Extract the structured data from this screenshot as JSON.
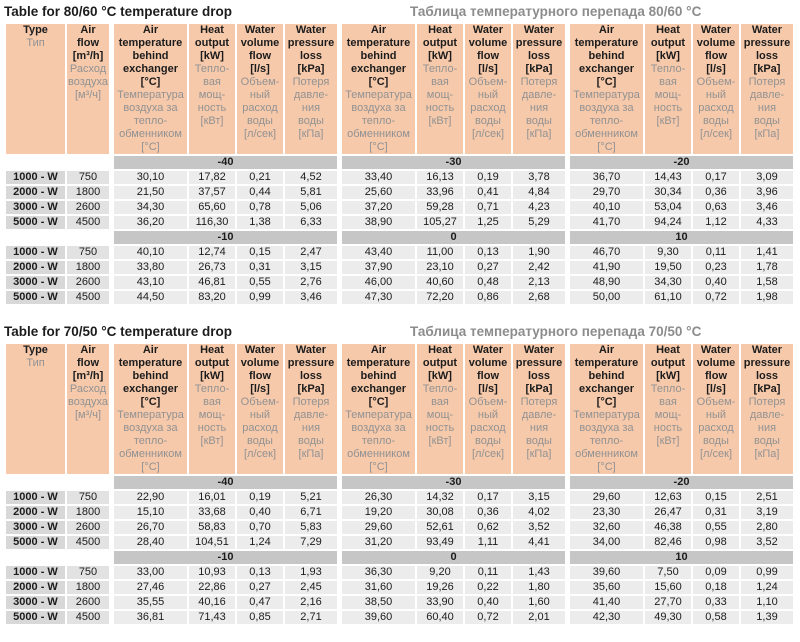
{
  "colors": {
    "header_bg": "#f6c9ab",
    "band_bg": "#c6c6c6",
    "type_cell_bg": "#d8d8d8",
    "airflow_cell_bg": "#e2e2e2",
    "value_cell_bg": "#ececec",
    "english_text": "#1c1c1c",
    "russian_text": "#929292",
    "russian_title_text": "#8c8c8c"
  },
  "header_columns": {
    "type": {
      "en": "Type",
      "ru": "Тип"
    },
    "airflow": {
      "en": "Air\nflow\n[m³/h]",
      "ru": "Расход\nвоздуха\n[м³/ч]"
    },
    "group": [
      {
        "en": "Air\ntemperature\nbehind\nexchanger\n[°C]",
        "ru": "Температура\nвоздуха за\nтепло-\nобменником\n[°C]"
      },
      {
        "en": "Heat\noutput\n[kW]",
        "ru": "Тепло-\nвая\nмощ-\nность\n[кВт]"
      },
      {
        "en": "Water\nvolume\nflow\n[l/s]",
        "ru": "Объем-\nный\nрасход\nводы\n[л/сек]"
      },
      {
        "en": "Water\npressure\nloss\n[kPa]",
        "ru": "Потеря\nдавле-\nния\nводы\n[кПа]"
      }
    ]
  },
  "tables": [
    {
      "title_en": "Table for 80/60 °C temperature drop",
      "title_ru": "Таблица температурного перепада 80/60 °C",
      "blocks": [
        {
          "temps": [
            "-40",
            "-30",
            "-20"
          ],
          "rows": [
            {
              "type": "1000 - W",
              "airflow": "750",
              "values": [
                [
                  "30,10",
                  "17,82",
                  "0,21",
                  "4,52"
                ],
                [
                  "33,40",
                  "16,13",
                  "0,19",
                  "3,78"
                ],
                [
                  "36,70",
                  "14,43",
                  "0,17",
                  "3,09"
                ]
              ]
            },
            {
              "type": "2000 - W",
              "airflow": "1800",
              "values": [
                [
                  "21,50",
                  "37,57",
                  "0,44",
                  "5,81"
                ],
                [
                  "25,60",
                  "33,96",
                  "0,41",
                  "4,84"
                ],
                [
                  "29,70",
                  "30,34",
                  "0,36",
                  "3,96"
                ]
              ]
            },
            {
              "type": "3000 - W",
              "airflow": "2600",
              "values": [
                [
                  "34,30",
                  "65,60",
                  "0,78",
                  "5,06"
                ],
                [
                  "37,20",
                  "59,28",
                  "0,71",
                  "4,23"
                ],
                [
                  "40,10",
                  "53,04",
                  "0,63",
                  "3,46"
                ]
              ]
            },
            {
              "type": "5000 - W",
              "airflow": "4500",
              "values": [
                [
                  "36,20",
                  "116,30",
                  "1,38",
                  "6,33"
                ],
                [
                  "38,90",
                  "105,27",
                  "1,25",
                  "5,29"
                ],
                [
                  "41,70",
                  "94,24",
                  "1,12",
                  "4,33"
                ]
              ]
            }
          ]
        },
        {
          "temps": [
            "-10",
            "0",
            "10"
          ],
          "rows": [
            {
              "type": "1000 - W",
              "airflow": "750",
              "values": [
                [
                  "40,10",
                  "12,74",
                  "0,15",
                  "2,47"
                ],
                [
                  "43,40",
                  "11,00",
                  "0,13",
                  "1,90"
                ],
                [
                  "46,70",
                  "9,30",
                  "0,11",
                  "1,41"
                ]
              ]
            },
            {
              "type": "2000 - W",
              "airflow": "1800",
              "values": [
                [
                  "33,80",
                  "26,73",
                  "0,31",
                  "3,15"
                ],
                [
                  "37,90",
                  "23,10",
                  "0,27",
                  "2,42"
                ],
                [
                  "41,90",
                  "19,50",
                  "0,23",
                  "1,78"
                ]
              ]
            },
            {
              "type": "3000 - W",
              "airflow": "2600",
              "values": [
                [
                  "43,10",
                  "46,81",
                  "0,55",
                  "2,76"
                ],
                [
                  "46,00",
                  "40,60",
                  "0,48",
                  "2,13"
                ],
                [
                  "48,90",
                  "34,30",
                  "0,40",
                  "1,58"
                ]
              ]
            },
            {
              "type": "5000 - W",
              "airflow": "4500",
              "values": [
                [
                  "44,50",
                  "83,20",
                  "0,99",
                  "3,46"
                ],
                [
                  "47,30",
                  "72,20",
                  "0,86",
                  "2,68"
                ],
                [
                  "50,00",
                  "61,10",
                  "0,72",
                  "1,98"
                ]
              ]
            }
          ]
        }
      ]
    },
    {
      "title_en": "Table for 70/50 °C temperature drop",
      "title_ru": "Таблица температурного перепада 70/50 °C",
      "blocks": [
        {
          "temps": [
            "-40",
            "-30",
            "-20"
          ],
          "rows": [
            {
              "type": "1000 - W",
              "airflow": "750",
              "values": [
                [
                  "22,90",
                  "16,01",
                  "0,19",
                  "5,21"
                ],
                [
                  "26,30",
                  "14,32",
                  "0,17",
                  "3,15"
                ],
                [
                  "29,60",
                  "12,63",
                  "0,15",
                  "2,51"
                ]
              ]
            },
            {
              "type": "2000 - W",
              "airflow": "1800",
              "values": [
                [
                  "15,10",
                  "33,68",
                  "0,40",
                  "6,71"
                ],
                [
                  "19,20",
                  "30,08",
                  "0,36",
                  "4,02"
                ],
                [
                  "23,30",
                  "26,47",
                  "0,31",
                  "3,19"
                ]
              ]
            },
            {
              "type": "3000 - W",
              "airflow": "2600",
              "values": [
                [
                  "26,70",
                  "58,83",
                  "0,70",
                  "5,83"
                ],
                [
                  "29,60",
                  "52,61",
                  "0,62",
                  "3,52"
                ],
                [
                  "32,60",
                  "46,38",
                  "0,55",
                  "2,80"
                ]
              ]
            },
            {
              "type": "5000 - W",
              "airflow": "4500",
              "values": [
                [
                  "28,40",
                  "104,51",
                  "1,24",
                  "7,29"
                ],
                [
                  "31,20",
                  "93,49",
                  "1,11",
                  "4,41"
                ],
                [
                  "34,00",
                  "82,46",
                  "0,98",
                  "3,52"
                ]
              ]
            }
          ]
        },
        {
          "temps": [
            "-10",
            "0",
            "10"
          ],
          "rows": [
            {
              "type": "1000 - W",
              "airflow": "750",
              "values": [
                [
                  "33,00",
                  "10,93",
                  "0,13",
                  "1,93"
                ],
                [
                  "36,30",
                  "9,20",
                  "0,11",
                  "1,43"
                ],
                [
                  "39,60",
                  "7,50",
                  "0,09",
                  "0,99"
                ]
              ]
            },
            {
              "type": "2000 - W",
              "airflow": "1800",
              "values": [
                [
                  "27,46",
                  "22,86",
                  "0,27",
                  "2,45"
                ],
                [
                  "31,60",
                  "19,26",
                  "0,22",
                  "1,80"
                ],
                [
                  "35,60",
                  "15,60",
                  "0,18",
                  "1,24"
                ]
              ]
            },
            {
              "type": "3000 - W",
              "airflow": "2600",
              "values": [
                [
                  "35,55",
                  "40,16",
                  "0,47",
                  "2,16"
                ],
                [
                  "38,50",
                  "33,90",
                  "0,40",
                  "1,60"
                ],
                [
                  "41,40",
                  "27,70",
                  "0,33",
                  "1,10"
                ]
              ]
            },
            {
              "type": "5000 - W",
              "airflow": "4500",
              "values": [
                [
                  "36,81",
                  "71,43",
                  "0,85",
                  "2,71"
                ],
                [
                  "39,60",
                  "60,40",
                  "0,72",
                  "2,01"
                ],
                [
                  "42,30",
                  "49,30",
                  "0,58",
                  "1,39"
                ]
              ]
            }
          ]
        }
      ]
    }
  ]
}
